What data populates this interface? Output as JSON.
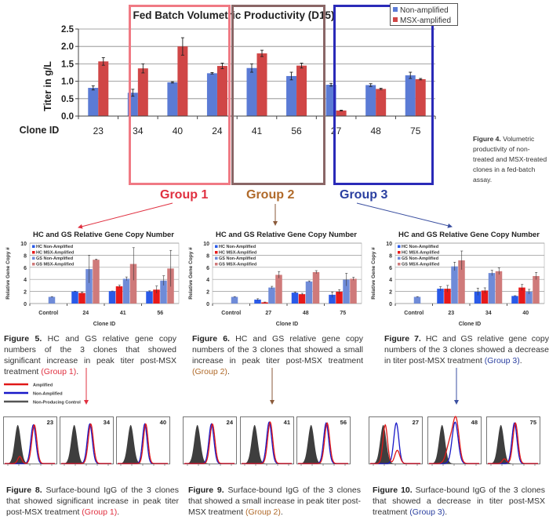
{
  "colors": {
    "non_amplified": "#5b7bd5",
    "msx_amplified": "#d04646",
    "group1": "#f07a84",
    "group2": "#8a6666",
    "group3": "#2a2ab8",
    "group1_text": "#e03040",
    "group2_text": "#b06a2a",
    "group3_text": "#2a3fa0",
    "hc_non": "#2a5ae8",
    "hc_msx": "#e81a1a",
    "gs_non": "#6f8bd8",
    "gs_msx": "#cf7a7a"
  },
  "groups": [
    {
      "label": "Group 1"
    },
    {
      "label": "Group 2"
    },
    {
      "label": "Group 3"
    }
  ],
  "figure4": {
    "caption_bold": "Figure 4.",
    "caption_text": " Volumetric productivity of non-treated and MSX-treated clones in a fed-batch assay."
  },
  "figure5": {
    "caption_bold": "Figure 5.",
    "caption_text": " HC and GS relative gene copy numbers of the 3 clones that showed significant increase in peak titer post-MSX treatment ",
    "group_ref": "(Group 1)",
    "tail": "."
  },
  "figure6": {
    "caption_bold": "Figure 6.",
    "caption_text": " HC and GS relative gene copy numbers of the 3 clones that showed a small increase in peak titer post-MSX treatment ",
    "group_ref": "(Group 2)",
    "tail": "."
  },
  "figure7": {
    "caption_bold": "Figure 7.",
    "caption_text": " HC and GS relative gene copy numbers of the 3 clones showed a decrease in titer post-MSX treatment ",
    "group_ref": "(Group 3)",
    "tail": "."
  },
  "figure8": {
    "caption_bold": "Figure 8.",
    "caption_text": " Surface-bound IgG of the 3 clones that showed significant increase in peak titer post-MSX treatment ",
    "group_ref": "(Group 1)",
    "tail": "."
  },
  "figure9": {
    "caption_bold": "Figure 9.",
    "caption_text": " Surface-bound IgG of the 3 clones that showed a small increase in peak titer post-MSX treatment ",
    "group_ref": "(Group 2)",
    "tail": "."
  },
  "figure10": {
    "caption_bold": "Figure 10.",
    "caption_text": " Surface-bound IgG of the 3 clones that showed a decrease in titer post-MSX treatment ",
    "group_ref": "(Group 3)",
    "tail": "."
  },
  "histogram_legend": [
    {
      "label": "Amplified",
      "color": "#e01818"
    },
    {
      "label": "Non-Amplified",
      "color": "#1818c8"
    },
    {
      "label": "Non-Producing Control",
      "color": "#555555"
    }
  ],
  "histogram_panels": [
    {
      "clone": "23",
      "group": 1
    },
    {
      "clone": "34",
      "group": 1
    },
    {
      "clone": "40",
      "group": 1
    },
    {
      "clone": "24",
      "group": 2
    },
    {
      "clone": "41",
      "group": 2
    },
    {
      "clone": "56",
      "group": 2
    },
    {
      "clone": "27",
      "group": 3
    },
    {
      "clone": "48",
      "group": 3
    },
    {
      "clone": "75",
      "group": 3
    }
  ],
  "chart_data": [
    {
      "type": "bar",
      "title": "Fed Batch Volumetric Productivity (D15)",
      "xlabel": "Clone ID",
      "ylabel": "Titer in g/L",
      "ylim": [
        0,
        2.5
      ],
      "yticks": [
        "0.0",
        "0.5",
        "1.0",
        "1.5",
        "2.0",
        "2.5"
      ],
      "grid": true,
      "legend_position": "top-right",
      "categories": [
        "23",
        "34",
        "40",
        "24",
        "41",
        "56",
        "27",
        "48",
        "75"
      ],
      "series": [
        {
          "name": "Non-amplified",
          "values": [
            0.81,
            0.67,
            0.97,
            1.23,
            1.38,
            1.15,
            0.9,
            0.89,
            1.17
          ],
          "errors": [
            0.06,
            0.1,
            0.02,
            0.02,
            0.12,
            0.11,
            0.04,
            0.04,
            0.09
          ]
        },
        {
          "name": "MSX-amplified",
          "values": [
            1.57,
            1.37,
            2.0,
            1.44,
            1.8,
            1.45,
            0.16,
            0.78,
            1.06
          ],
          "errors": [
            0.11,
            0.13,
            0.25,
            0.08,
            0.09,
            0.07,
            0.01,
            0.02,
            0.02
          ]
        }
      ]
    },
    {
      "type": "bar",
      "title": "HC and GS Relative Gene Copy Number",
      "xlabel": "Clone ID",
      "ylabel": "Relative Gene Copy #",
      "ylim": [
        0,
        10
      ],
      "yticks": [
        "0",
        "2",
        "4",
        "6",
        "8",
        "10"
      ],
      "grid": true,
      "legend_position": "top-left",
      "categories": [
        "Control",
        "24",
        "41",
        "56"
      ],
      "series": [
        {
          "name": "HC Non-Amplified",
          "values": [
            null,
            2.0,
            2.05,
            2.0
          ],
          "errors": [
            0,
            0.05,
            0.02,
            0.1
          ]
        },
        {
          "name": "HC MSX-Amplified",
          "values": [
            null,
            1.75,
            2.85,
            2.3
          ],
          "errors": [
            0,
            0.15,
            0.2,
            0.6
          ]
        },
        {
          "name": "GS Non-Amplified",
          "values": [
            1.1,
            5.7,
            4.1,
            3.8
          ],
          "errors": [
            0.05,
            2.3,
            0.3,
            0.8
          ]
        },
        {
          "name": "GS MSX-Amplified",
          "values": [
            null,
            7.25,
            6.55,
            5.8
          ],
          "errors": [
            0,
            0.1,
            2.7,
            3.0
          ]
        }
      ]
    },
    {
      "type": "bar",
      "title": "HC and GS Relative Gene Copy Number",
      "xlabel": "Clone ID",
      "ylabel": "Relative Gene Copy #",
      "ylim": [
        0,
        10
      ],
      "yticks": [
        "0",
        "2",
        "4",
        "6",
        "8",
        "10"
      ],
      "grid": true,
      "legend_position": "top-left",
      "categories": [
        "Control",
        "27",
        "48",
        "75"
      ],
      "series": [
        {
          "name": "HC Non-Amplified",
          "values": [
            null,
            0.65,
            1.8,
            1.45
          ],
          "errors": [
            0,
            0.15,
            0.1,
            0.45
          ]
        },
        {
          "name": "HC MSX-Amplified",
          "values": [
            null,
            0.2,
            1.55,
            1.95
          ],
          "errors": [
            0,
            0.05,
            0.15,
            0.35
          ]
        },
        {
          "name": "GS Non-Amplified",
          "values": [
            1.1,
            2.65,
            3.65,
            3.95
          ],
          "errors": [
            0.05,
            0.2,
            0.1,
            1.05
          ]
        },
        {
          "name": "GS MSX-Amplified",
          "values": [
            null,
            4.75,
            5.2,
            4.1
          ],
          "errors": [
            0,
            0.55,
            0.25,
            0.25
          ]
        }
      ]
    },
    {
      "type": "bar",
      "title": "HC and GS Relative Gene Copy Number",
      "xlabel": "Clone ID",
      "ylabel": "Relative Gene Copy #",
      "ylim": [
        0,
        10
      ],
      "yticks": [
        "0",
        "2",
        "4",
        "6",
        "8",
        "10"
      ],
      "grid": true,
      "legend_position": "top-left",
      "categories": [
        "Control",
        "23",
        "34",
        "40"
      ],
      "series": [
        {
          "name": "HC Non-Amplified",
          "values": [
            null,
            2.45,
            1.95,
            1.25
          ],
          "errors": [
            0,
            0.35,
            0.6,
            0.05
          ]
        },
        {
          "name": "HC MSX-Amplified",
          "values": [
            null,
            2.45,
            2.15,
            2.65
          ],
          "errors": [
            0,
            0.55,
            0.45,
            0.5
          ]
        },
        {
          "name": "GS Non-Amplified",
          "values": [
            1.1,
            6.15,
            5.05,
            1.95
          ],
          "errors": [
            0.05,
            0.7,
            0.45,
            0.4
          ]
        },
        {
          "name": "GS MSX-Amplified",
          "values": [
            null,
            7.15,
            5.35,
            4.55
          ],
          "errors": [
            0,
            1.55,
            0.55,
            0.6
          ]
        }
      ]
    }
  ]
}
